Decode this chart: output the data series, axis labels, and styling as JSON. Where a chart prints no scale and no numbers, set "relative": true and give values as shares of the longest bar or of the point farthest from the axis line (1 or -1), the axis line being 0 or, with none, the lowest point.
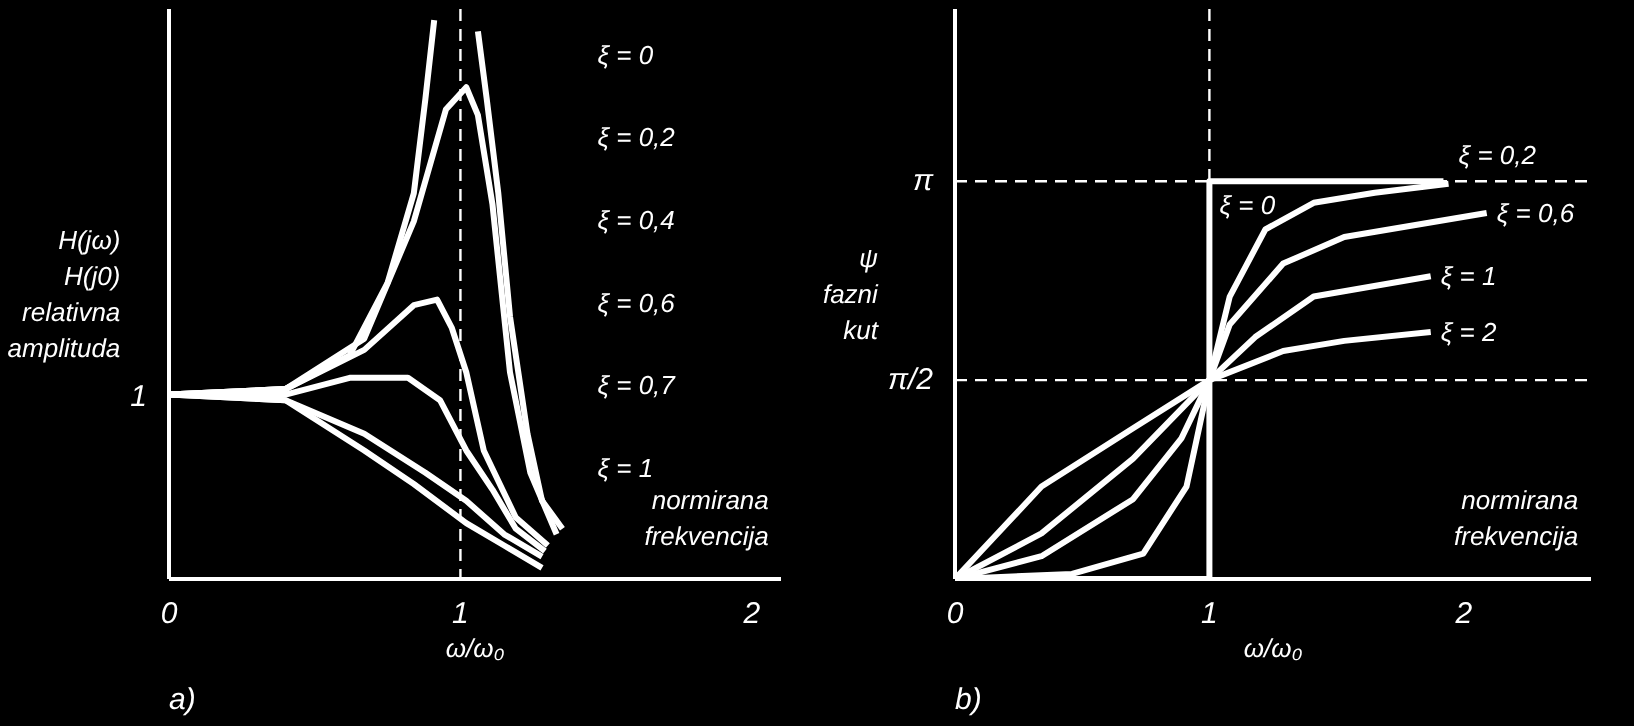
{
  "chart_data": [
    {
      "type": "line",
      "title": "a)",
      "xlabel": "ω/ω₀",
      "ylabel": "H(jω)\nH(j0)\nrelativna\namplituda",
      "annotations": [
        "normirana frekvencija",
        "1"
      ],
      "relative": true,
      "xlim": [
        0,
        2.1
      ],
      "xticks": [
        0,
        1,
        2
      ],
      "grid": false,
      "legend": false,
      "marker": "none",
      "line_style": "solid",
      "ref_lines": [
        {
          "axis": "x",
          "value": 1,
          "line_style": "dashed",
          "color": "#ffffff"
        }
      ],
      "series": [
        {
          "name": "ξ = 0",
          "color": "#ffffff",
          "x": [
            0,
            0.4,
            0.62,
            0.75,
            0.84,
            0.88,
            0.91,
            null,
            1.06,
            1.09,
            1.13,
            1.17,
            1.23,
            1.28,
            1.35
          ],
          "values": [
            0.33,
            0.34,
            0.4,
            0.53,
            0.69,
            0.86,
            1,
            null,
            0.98,
            0.86,
            0.69,
            0.47,
            0.26,
            0.14,
            0.09
          ]
        },
        {
          "name": "ξ = 0,2",
          "color": "#ffffff",
          "x": [
            0,
            0.4,
            0.67,
            0.84,
            0.95,
            1.02,
            1.06,
            1.11,
            1.17,
            1.24,
            1.33
          ],
          "values": [
            0.33,
            0.34,
            0.43,
            0.64,
            0.84,
            0.88,
            0.83,
            0.67,
            0.37,
            0.19,
            0.08
          ]
        },
        {
          "name": "ξ = 0,4",
          "color": "#ffffff",
          "x": [
            0,
            0.4,
            0.67,
            0.84,
            0.92,
            0.97,
            1.02,
            1.08,
            1.19,
            1.3
          ],
          "values": [
            0.33,
            0.34,
            0.41,
            0.49,
            0.5,
            0.45,
            0.37,
            0.23,
            0.11,
            0.06
          ]
        },
        {
          "name": "ξ = 0,6",
          "color": "#ffffff",
          "x": [
            0,
            0.4,
            0.62,
            0.82,
            0.93,
            1.02,
            1.11,
            1.19,
            1.29
          ],
          "values": [
            0.33,
            0.33,
            0.36,
            0.36,
            0.32,
            0.23,
            0.16,
            0.09,
            0.05
          ]
        },
        {
          "name": "ξ = 0,7",
          "color": "#ffffff",
          "x": [
            0,
            0.4,
            0.67,
            0.88,
            1.02,
            1.15,
            1.28
          ],
          "values": [
            0.33,
            0.32,
            0.26,
            0.19,
            0.14,
            0.08,
            0.04
          ]
        },
        {
          "name": "ξ = 1",
          "color": "#ffffff",
          "x": [
            0,
            0.4,
            0.67,
            0.84,
            1.02,
            1.15,
            1.28
          ],
          "values": [
            0.33,
            0.32,
            0.23,
            0.17,
            0.1,
            0.06,
            0.02
          ]
        }
      ]
    },
    {
      "type": "line",
      "title": "b)",
      "xlabel": "ω/ω₀",
      "ylabel": "ψ\nfazni\nkut",
      "annotations": [
        "normirana frekvencija"
      ],
      "xlim": [
        0,
        2.5
      ],
      "ylim": [
        0,
        4.5
      ],
      "xticks": [
        0,
        1,
        2
      ],
      "yticks": [
        {
          "value": 1.57,
          "label": "π/2"
        },
        {
          "value": 3.14,
          "label": "π"
        }
      ],
      "grid": false,
      "legend": false,
      "marker": "none",
      "line_style": "solid",
      "ref_lines": [
        {
          "axis": "x",
          "value": 1,
          "line_style": "dashed",
          "color": "#ffffff"
        },
        {
          "axis": "y",
          "value": 3.14,
          "line_style": "dashed",
          "color": "#ffffff"
        },
        {
          "axis": "y",
          "value": 1.57,
          "line_style": "dashed",
          "color": "#ffffff"
        }
      ],
      "series": [
        {
          "name": "ξ = 0",
          "color": "#ffffff",
          "x": [
            0,
            1,
            1,
            1.92
          ],
          "values": [
            0,
            0,
            3.14,
            3.14
          ]
        },
        {
          "name": "ξ = 0,2",
          "color": "#ffffff",
          "x": [
            0,
            0.46,
            0.74,
            0.91,
            1,
            1.08,
            1.22,
            1.41,
            1.65,
            1.94
          ],
          "values": [
            0,
            0.04,
            0.2,
            0.73,
            1.57,
            2.23,
            2.76,
            2.97,
            3.05,
            3.12
          ]
        },
        {
          "name": "ξ = 0,6",
          "color": "#ffffff",
          "x": [
            0,
            0.34,
            0.7,
            0.89,
            1,
            1.08,
            1.29,
            1.53,
            2.09
          ],
          "values": [
            0,
            0.18,
            0.63,
            1.11,
            1.57,
            2.01,
            2.49,
            2.7,
            2.89
          ]
        },
        {
          "name": "ξ = 1",
          "color": "#ffffff",
          "x": [
            0,
            0.34,
            0.7,
            1,
            1.18,
            1.41,
            1.87
          ],
          "values": [
            0,
            0.36,
            0.95,
            1.57,
            1.91,
            2.23,
            2.39
          ]
        },
        {
          "name": "ξ = 2",
          "color": "#ffffff",
          "x": [
            0,
            0.34,
            0.7,
            1,
            1.29,
            1.53,
            1.87
          ],
          "values": [
            0,
            0.73,
            1.19,
            1.57,
            1.8,
            1.88,
            1.95
          ]
        }
      ]
    }
  ]
}
